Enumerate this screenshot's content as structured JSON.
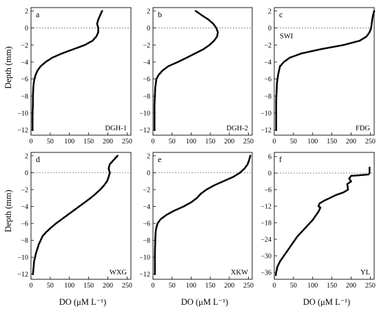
{
  "figure": {
    "ylabel": "Depth (mm)",
    "xlabel": "DO (μM L⁻¹)"
  },
  "chart_data": [
    {
      "type": "scatter",
      "panel": "a",
      "site": "DGH-1",
      "annotation": "",
      "xlim": [
        0,
        260
      ],
      "ylim": [
        -12.6,
        2.4
      ],
      "xticks": [
        0,
        50,
        100,
        150,
        200,
        250
      ],
      "yticks": [
        2,
        0,
        -2,
        -4,
        -6,
        -8,
        -10,
        -12
      ],
      "series": [
        {
          "x": [
            185,
            180,
            175,
            172,
            175,
            175,
            170,
            160,
            140,
            110,
            80,
            55,
            38,
            25,
            17,
            12,
            9,
            7,
            6,
            5,
            5,
            4,
            4,
            4
          ],
          "y": [
            2,
            1.5,
            1,
            0.5,
            0,
            -0.5,
            -1,
            -1.5,
            -2,
            -2.5,
            -3,
            -3.5,
            -4,
            -4.5,
            -5,
            -5.5,
            -6,
            -6.5,
            -7,
            -8,
            -9,
            -10,
            -11,
            -12
          ]
        }
      ]
    },
    {
      "type": "scatter",
      "panel": "b",
      "site": "DGH-2",
      "annotation": "",
      "xlim": [
        0,
        260
      ],
      "ylim": [
        -12.6,
        2.4
      ],
      "xticks": [
        0,
        50,
        100,
        150,
        200,
        250
      ],
      "yticks": [
        2,
        0,
        -2,
        -4,
        -6,
        -8,
        -10,
        -12
      ],
      "series": [
        {
          "x": [
            112,
            128,
            145,
            158,
            166,
            170,
            168,
            160,
            148,
            132,
            110,
            88,
            65,
            40,
            25,
            15,
            9,
            6,
            5,
            4,
            4,
            4,
            4
          ],
          "y": [
            2,
            1.5,
            1,
            0.5,
            0,
            -0.5,
            -1,
            -1.5,
            -2,
            -2.5,
            -3,
            -3.5,
            -4,
            -4.5,
            -5,
            -5.5,
            -6,
            -7,
            -8,
            -9,
            -10,
            -11,
            -12
          ]
        }
      ]
    },
    {
      "type": "scatter",
      "panel": "c",
      "site": "FDG",
      "annotation": "SWI",
      "xlim": [
        0,
        260
      ],
      "ylim": [
        -12.6,
        2.4
      ],
      "xticks": [
        0,
        50,
        100,
        150,
        200,
        250
      ],
      "yticks": [
        2,
        0,
        -2,
        -4,
        -6,
        -8,
        -10,
        -12
      ],
      "series": [
        {
          "x": [
            260,
            257,
            255,
            252,
            248,
            240,
            222,
            180,
            120,
            70,
            40,
            25,
            15,
            10,
            7,
            6,
            5,
            5,
            5,
            5
          ],
          "y": [
            2,
            1.5,
            1,
            0,
            -0.5,
            -1,
            -1.5,
            -2,
            -2.5,
            -3,
            -3.5,
            -4,
            -4.5,
            -5.5,
            -6.5,
            -7.5,
            -8.5,
            -10,
            -11,
            -12
          ]
        }
      ]
    },
    {
      "type": "scatter",
      "panel": "d",
      "site": "WXG",
      "annotation": "",
      "xlim": [
        0,
        260
      ],
      "ylim": [
        -12.6,
        2.4
      ],
      "xticks": [
        0,
        50,
        100,
        150,
        200,
        250
      ],
      "yticks": [
        2,
        0,
        -2,
        -4,
        -6,
        -8,
        -10,
        -12
      ],
      "series": [
        {
          "x": [
            225,
            215,
            205,
            202,
            205,
            202,
            198,
            190,
            180,
            168,
            155,
            140,
            125,
            110,
            95,
            80,
            65,
            52,
            40,
            30,
            20,
            13,
            8,
            5
          ],
          "y": [
            2,
            1.5,
            1,
            0.5,
            0,
            -0.5,
            -1,
            -1.5,
            -2,
            -2.5,
            -3,
            -3.5,
            -4,
            -4.5,
            -5,
            -5.5,
            -6,
            -6.5,
            -7,
            -7.5,
            -8.5,
            -9.5,
            -10.5,
            -12
          ]
        }
      ]
    },
    {
      "type": "scatter",
      "panel": "e",
      "site": "XKW",
      "annotation": "",
      "xlim": [
        0,
        260
      ],
      "ylim": [
        -12.6,
        2.4
      ],
      "xticks": [
        0,
        50,
        100,
        150,
        200,
        250
      ],
      "yticks": [
        2,
        0,
        -2,
        -4,
        -6,
        -8,
        -10,
        -12
      ],
      "series": [
        {
          "x": [
            255,
            252,
            248,
            240,
            228,
            210,
            185,
            160,
            140,
            125,
            115,
            100,
            80,
            55,
            35,
            20,
            12,
            9,
            7,
            6,
            5,
            5,
            5
          ],
          "y": [
            2,
            1.5,
            1,
            0.5,
            0,
            -0.5,
            -1,
            -1.5,
            -2,
            -2.5,
            -3,
            -3.5,
            -4,
            -4.5,
            -5,
            -5.5,
            -6,
            -6.5,
            -7,
            -8,
            -9.5,
            -11,
            -12
          ]
        }
      ]
    },
    {
      "type": "line",
      "panel": "f",
      "site": "YL",
      "annotation": "",
      "xlim": [
        0,
        260
      ],
      "ylim": [
        -38.5,
        7.5
      ],
      "xticks": [
        0,
        50,
        100,
        150,
        200,
        250
      ],
      "yticks": [
        6,
        0,
        -6,
        -12,
        -18,
        -24,
        -30,
        -36
      ],
      "series": [
        {
          "x": [
            248,
            248,
            245,
            220,
            200,
            195,
            200,
            190,
            192,
            180,
            160,
            130,
            118,
            115,
            120,
            115,
            100,
            80,
            60,
            45,
            35,
            25,
            15,
            8,
            5,
            4
          ],
          "y": [
            2,
            0,
            -0.5,
            -0.8,
            -1,
            -2,
            -3,
            -4,
            -6,
            -7,
            -8,
            -10,
            -11,
            -12,
            -12.5,
            -14,
            -17,
            -20,
            -23,
            -26,
            -28,
            -30,
            -32,
            -34,
            -36,
            -37
          ]
        }
      ]
    }
  ]
}
